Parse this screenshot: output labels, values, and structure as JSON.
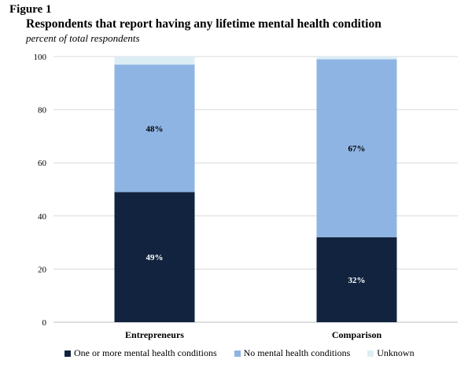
{
  "figure_label": "Figure 1",
  "title": "Respondents that report having any lifetime mental health condition",
  "subtitle": "percent of total respondents",
  "chart_data": {
    "type": "bar",
    "stacked": true,
    "categories": [
      "Entrepreneurs",
      "Comparison"
    ],
    "ylim": [
      0,
      100
    ],
    "yticks": [
      "0",
      "20",
      "40",
      "60",
      "80",
      "100"
    ],
    "grid": true,
    "legend_position": "bottom",
    "series": [
      {
        "name": "One or more mental health conditions",
        "values": [
          49,
          32
        ],
        "labels": [
          "49%",
          "32%"
        ],
        "color": "#12233f",
        "label_color": "#ffffff"
      },
      {
        "name": "No mental health conditions",
        "values": [
          48,
          67
        ],
        "labels": [
          "48%",
          "67%"
        ],
        "color": "#8eb4e3",
        "label_color": "#000000"
      },
      {
        "name": "Unknown",
        "values": [
          3,
          1
        ],
        "labels": [
          "",
          ""
        ],
        "color": "#dbeef4",
        "label_color": "#000000"
      }
    ]
  }
}
